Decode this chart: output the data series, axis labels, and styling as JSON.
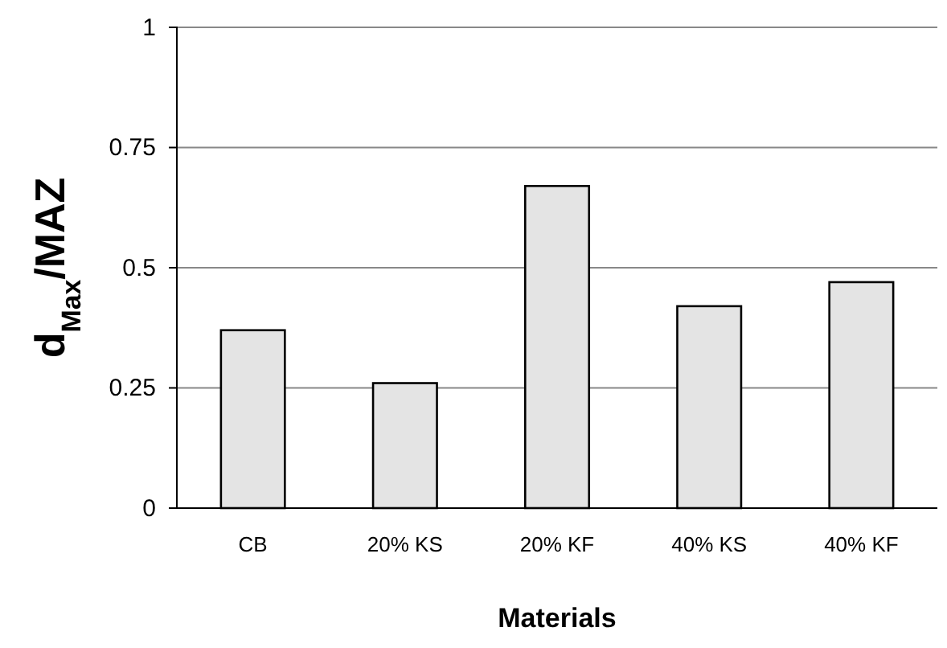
{
  "chart_data": {
    "type": "bar",
    "xlabel": "Materials",
    "ylabel": "d$_{Max}$/MAZ",
    "categories": [
      "CB",
      "20% KS",
      "20% KF",
      "40% KS",
      "40% KF"
    ],
    "values": [
      0.37,
      0.26,
      0.67,
      0.42,
      0.47
    ],
    "color": "#e4e4e4",
    "ylim": [
      0,
      1
    ],
    "yticks": [
      0,
      0.25,
      0.5,
      0.75,
      1
    ],
    "grid": "y"
  }
}
